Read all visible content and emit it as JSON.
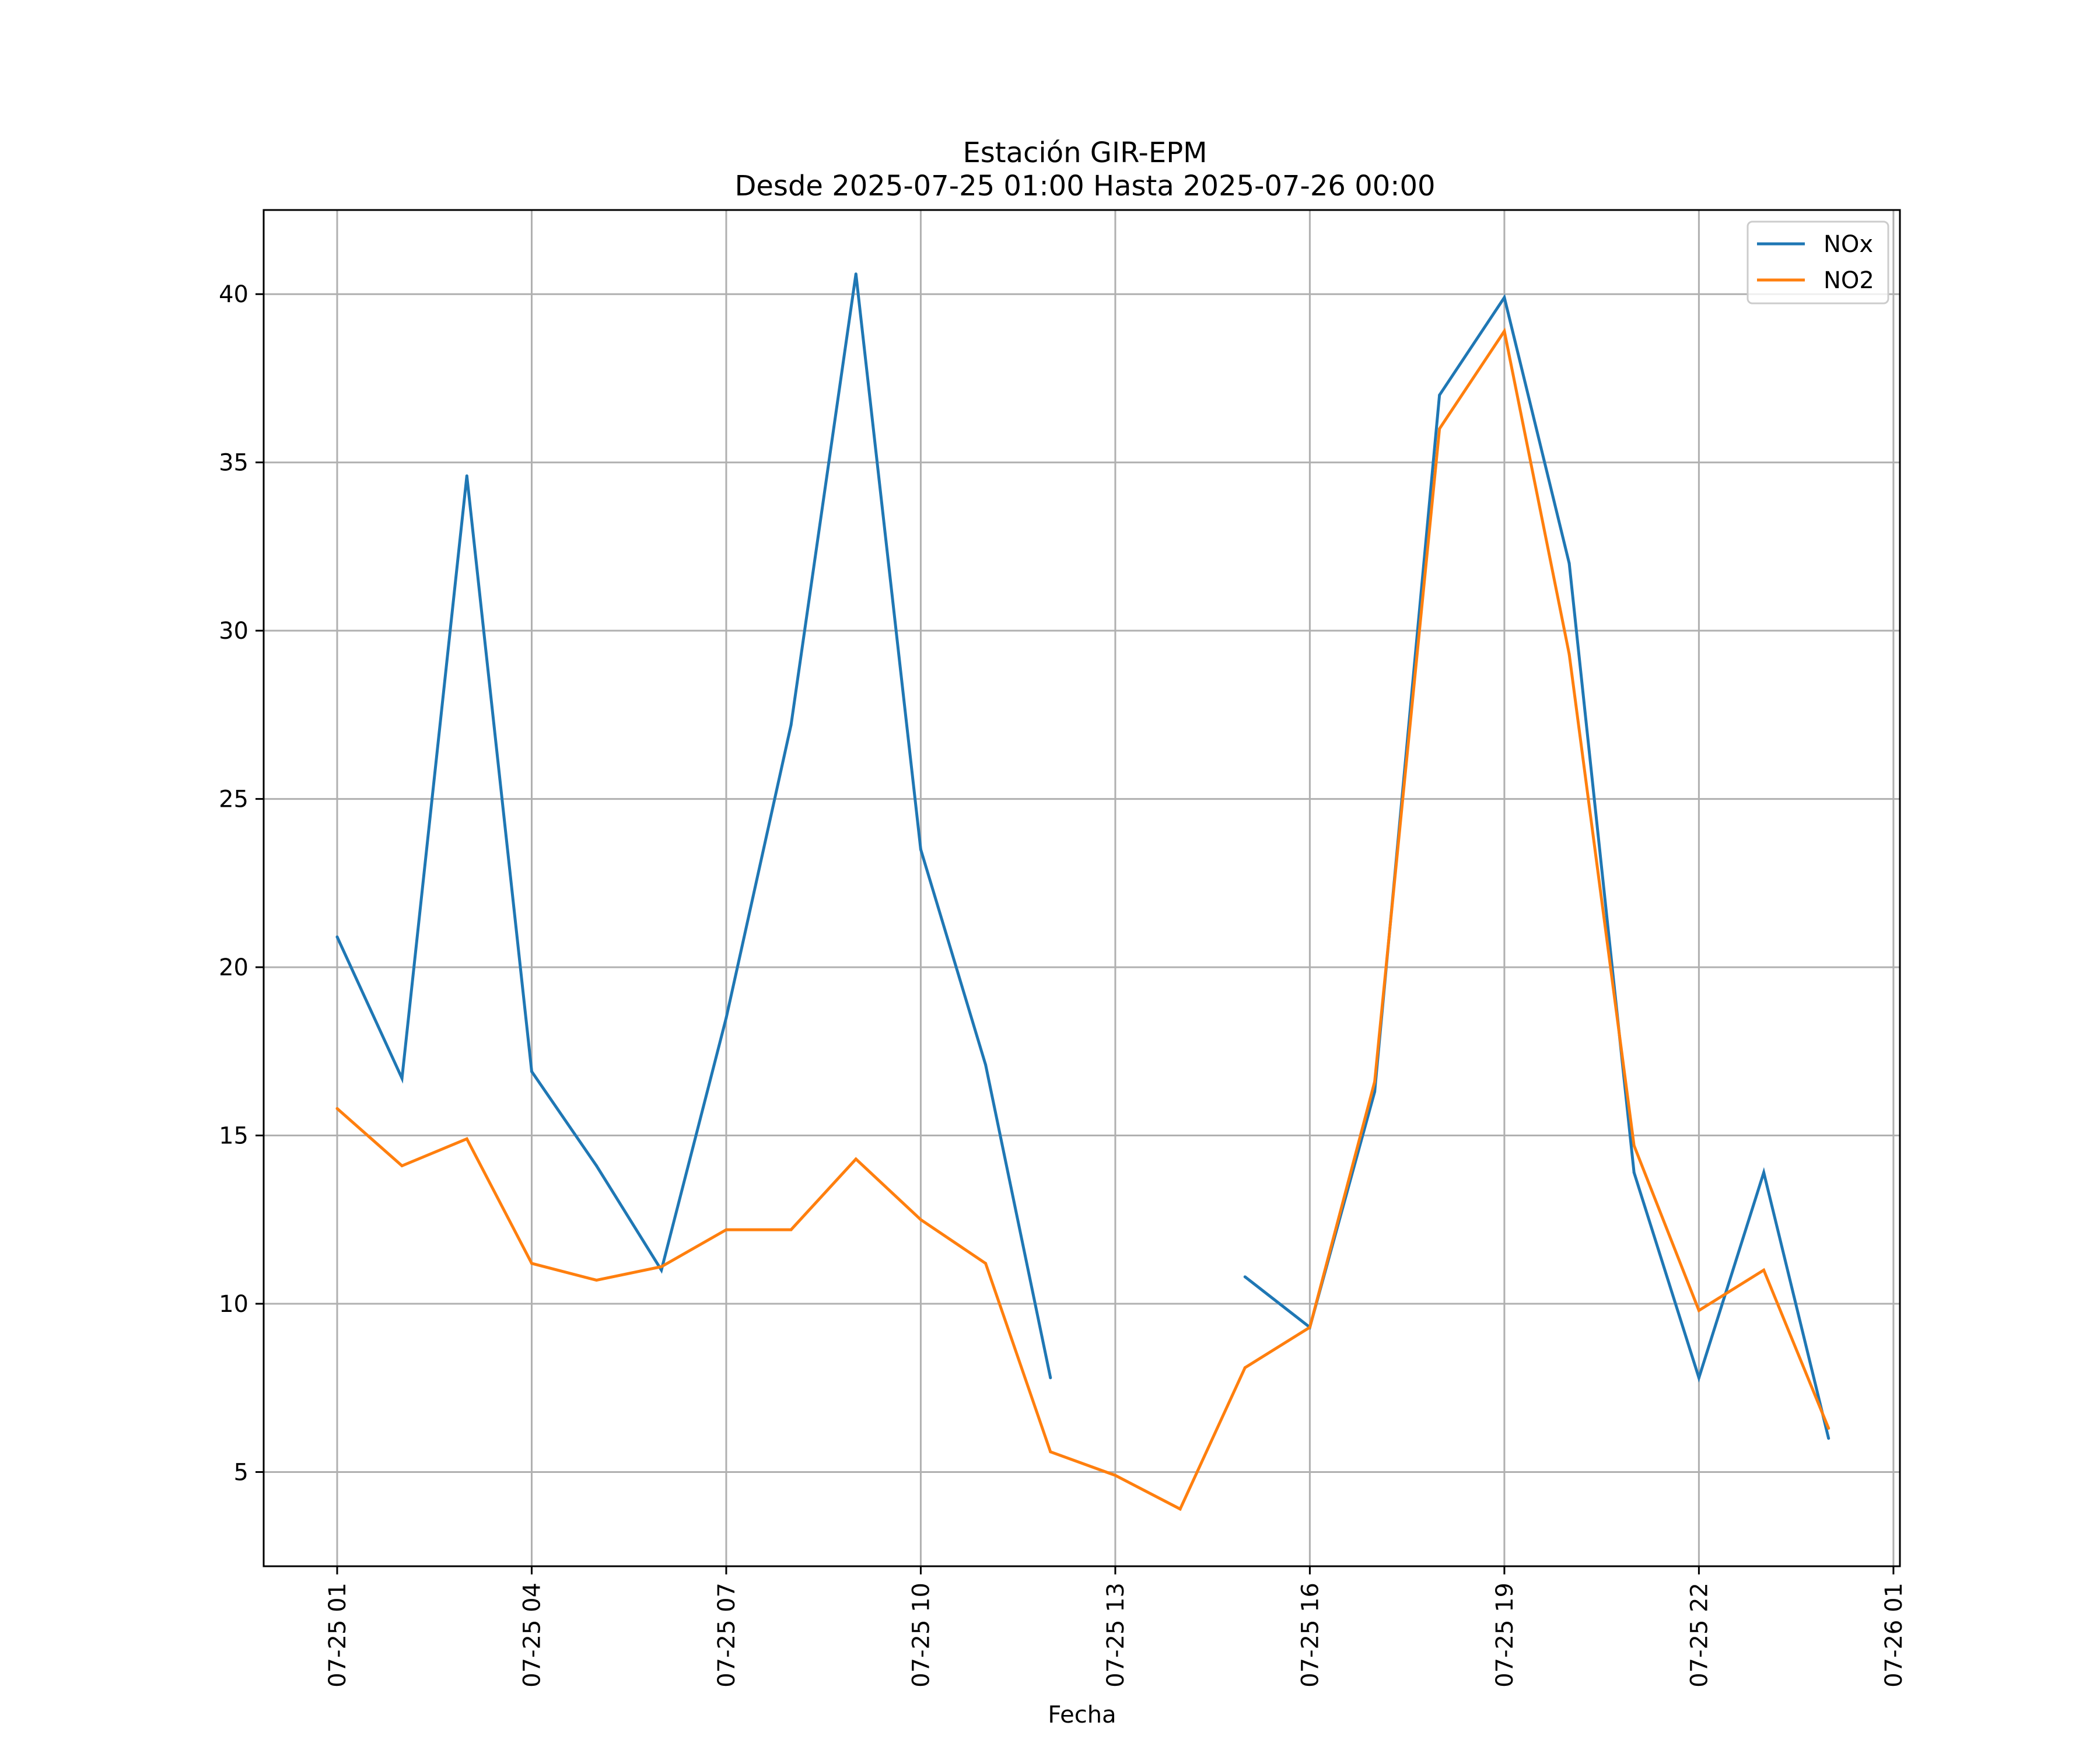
{
  "chart_data": {
    "type": "line",
    "title": "Estación GIR-EPM",
    "subtitle": "Desde 2025-07-25 01:00 Hasta 2025-07-26 00:00",
    "xlabel": "Fecha",
    "ylabel": "",
    "x": [
      "07-25 01",
      "07-25 02",
      "07-25 03",
      "07-25 04",
      "07-25 05",
      "07-25 06",
      "07-25 07",
      "07-25 08",
      "07-25 09",
      "07-25 10",
      "07-25 11",
      "07-25 12",
      "07-25 13",
      "07-25 14",
      "07-25 15",
      "07-25 16",
      "07-25 17",
      "07-25 18",
      "07-25 19",
      "07-25 20",
      "07-25 21",
      "07-25 22",
      "07-25 23",
      "07-26 00"
    ],
    "xticks": [
      "07-25 01",
      "07-25 04",
      "07-25 07",
      "07-25 10",
      "07-25 13",
      "07-25 16",
      "07-25 19",
      "07-25 22",
      "07-26 01"
    ],
    "xlim": [
      "07-24 23:52",
      "07-26 01:06"
    ],
    "yticks": [
      5,
      10,
      15,
      20,
      25,
      30,
      35,
      40
    ],
    "ylim": [
      2.2,
      42.5
    ],
    "grid": true,
    "legend_position": "top-right",
    "series": [
      {
        "name": "NOx",
        "color": "#1f77b4",
        "values": [
          20.9,
          16.7,
          34.6,
          16.9,
          14.1,
          11.0,
          18.5,
          27.2,
          40.6,
          23.5,
          17.1,
          7.8,
          null,
          null,
          10.8,
          9.3,
          16.3,
          37.0,
          39.9,
          32.0,
          13.9,
          7.8,
          13.9,
          6.0
        ]
      },
      {
        "name": "NO2",
        "color": "#ff7f0e",
        "values": [
          15.8,
          14.1,
          14.9,
          11.2,
          10.7,
          11.1,
          12.2,
          12.2,
          14.3,
          12.5,
          11.2,
          5.6,
          4.9,
          3.9,
          8.1,
          9.3,
          16.6,
          36.0,
          38.9,
          29.3,
          14.7,
          9.8,
          11.0,
          6.3
        ]
      }
    ]
  }
}
